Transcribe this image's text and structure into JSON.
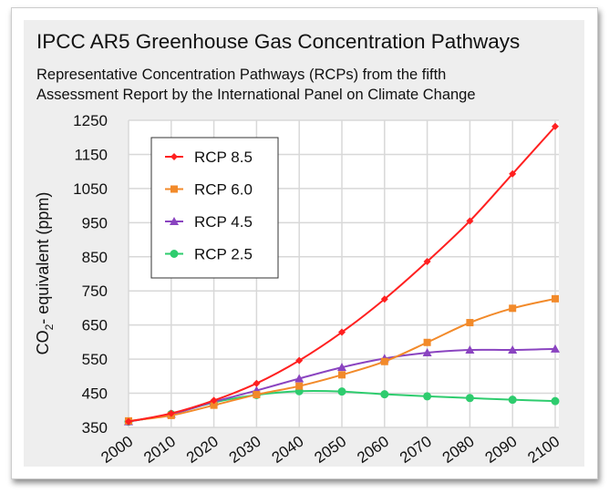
{
  "chart_data": {
    "type": "line",
    "title": "IPCC AR5 Greenhouse Gas Concentration Pathways",
    "subtitle_lines": [
      "Representative Concentration Pathways (RCPs) from the fifth",
      "Assessment Report by the International Panel on Climate Change"
    ],
    "xlabel": "",
    "ylabel": {
      "prefix": "CO",
      "sub": "2",
      "suffix": "- equivalent (ppm)"
    },
    "x": [
      2000,
      2010,
      2020,
      2030,
      2040,
      2050,
      2060,
      2070,
      2080,
      2090,
      2100
    ],
    "xlim": [
      2000,
      2100
    ],
    "ylim": [
      350,
      1250
    ],
    "yticks": [
      350,
      450,
      550,
      650,
      750,
      850,
      950,
      1050,
      1150,
      1250
    ],
    "grid": true,
    "legend_position": "top-left",
    "series": [
      {
        "name": "RCP 8.5",
        "color": "#ff2020",
        "marker": "diamond",
        "values": [
          367,
          391,
          429,
          479,
          546,
          629,
          726,
          836,
          955,
          1093,
          1232
        ]
      },
      {
        "name": "RCP 6.0",
        "color": "#f28a2a",
        "marker": "square",
        "values": [
          369,
          385,
          415,
          446,
          471,
          504,
          543,
          599,
          657,
          699,
          727
        ]
      },
      {
        "name": "RCP 4.5",
        "color": "#8a44c0",
        "marker": "triangle",
        "values": [
          367,
          389,
          425,
          458,
          493,
          526,
          552,
          569,
          577,
          577,
          580
        ]
      },
      {
        "name": "RCP 2.5",
        "color": "#2ecc6e",
        "marker": "circle",
        "values": [
          367,
          389,
          423,
          445,
          456,
          455,
          447,
          441,
          436,
          431,
          427
        ]
      }
    ]
  }
}
